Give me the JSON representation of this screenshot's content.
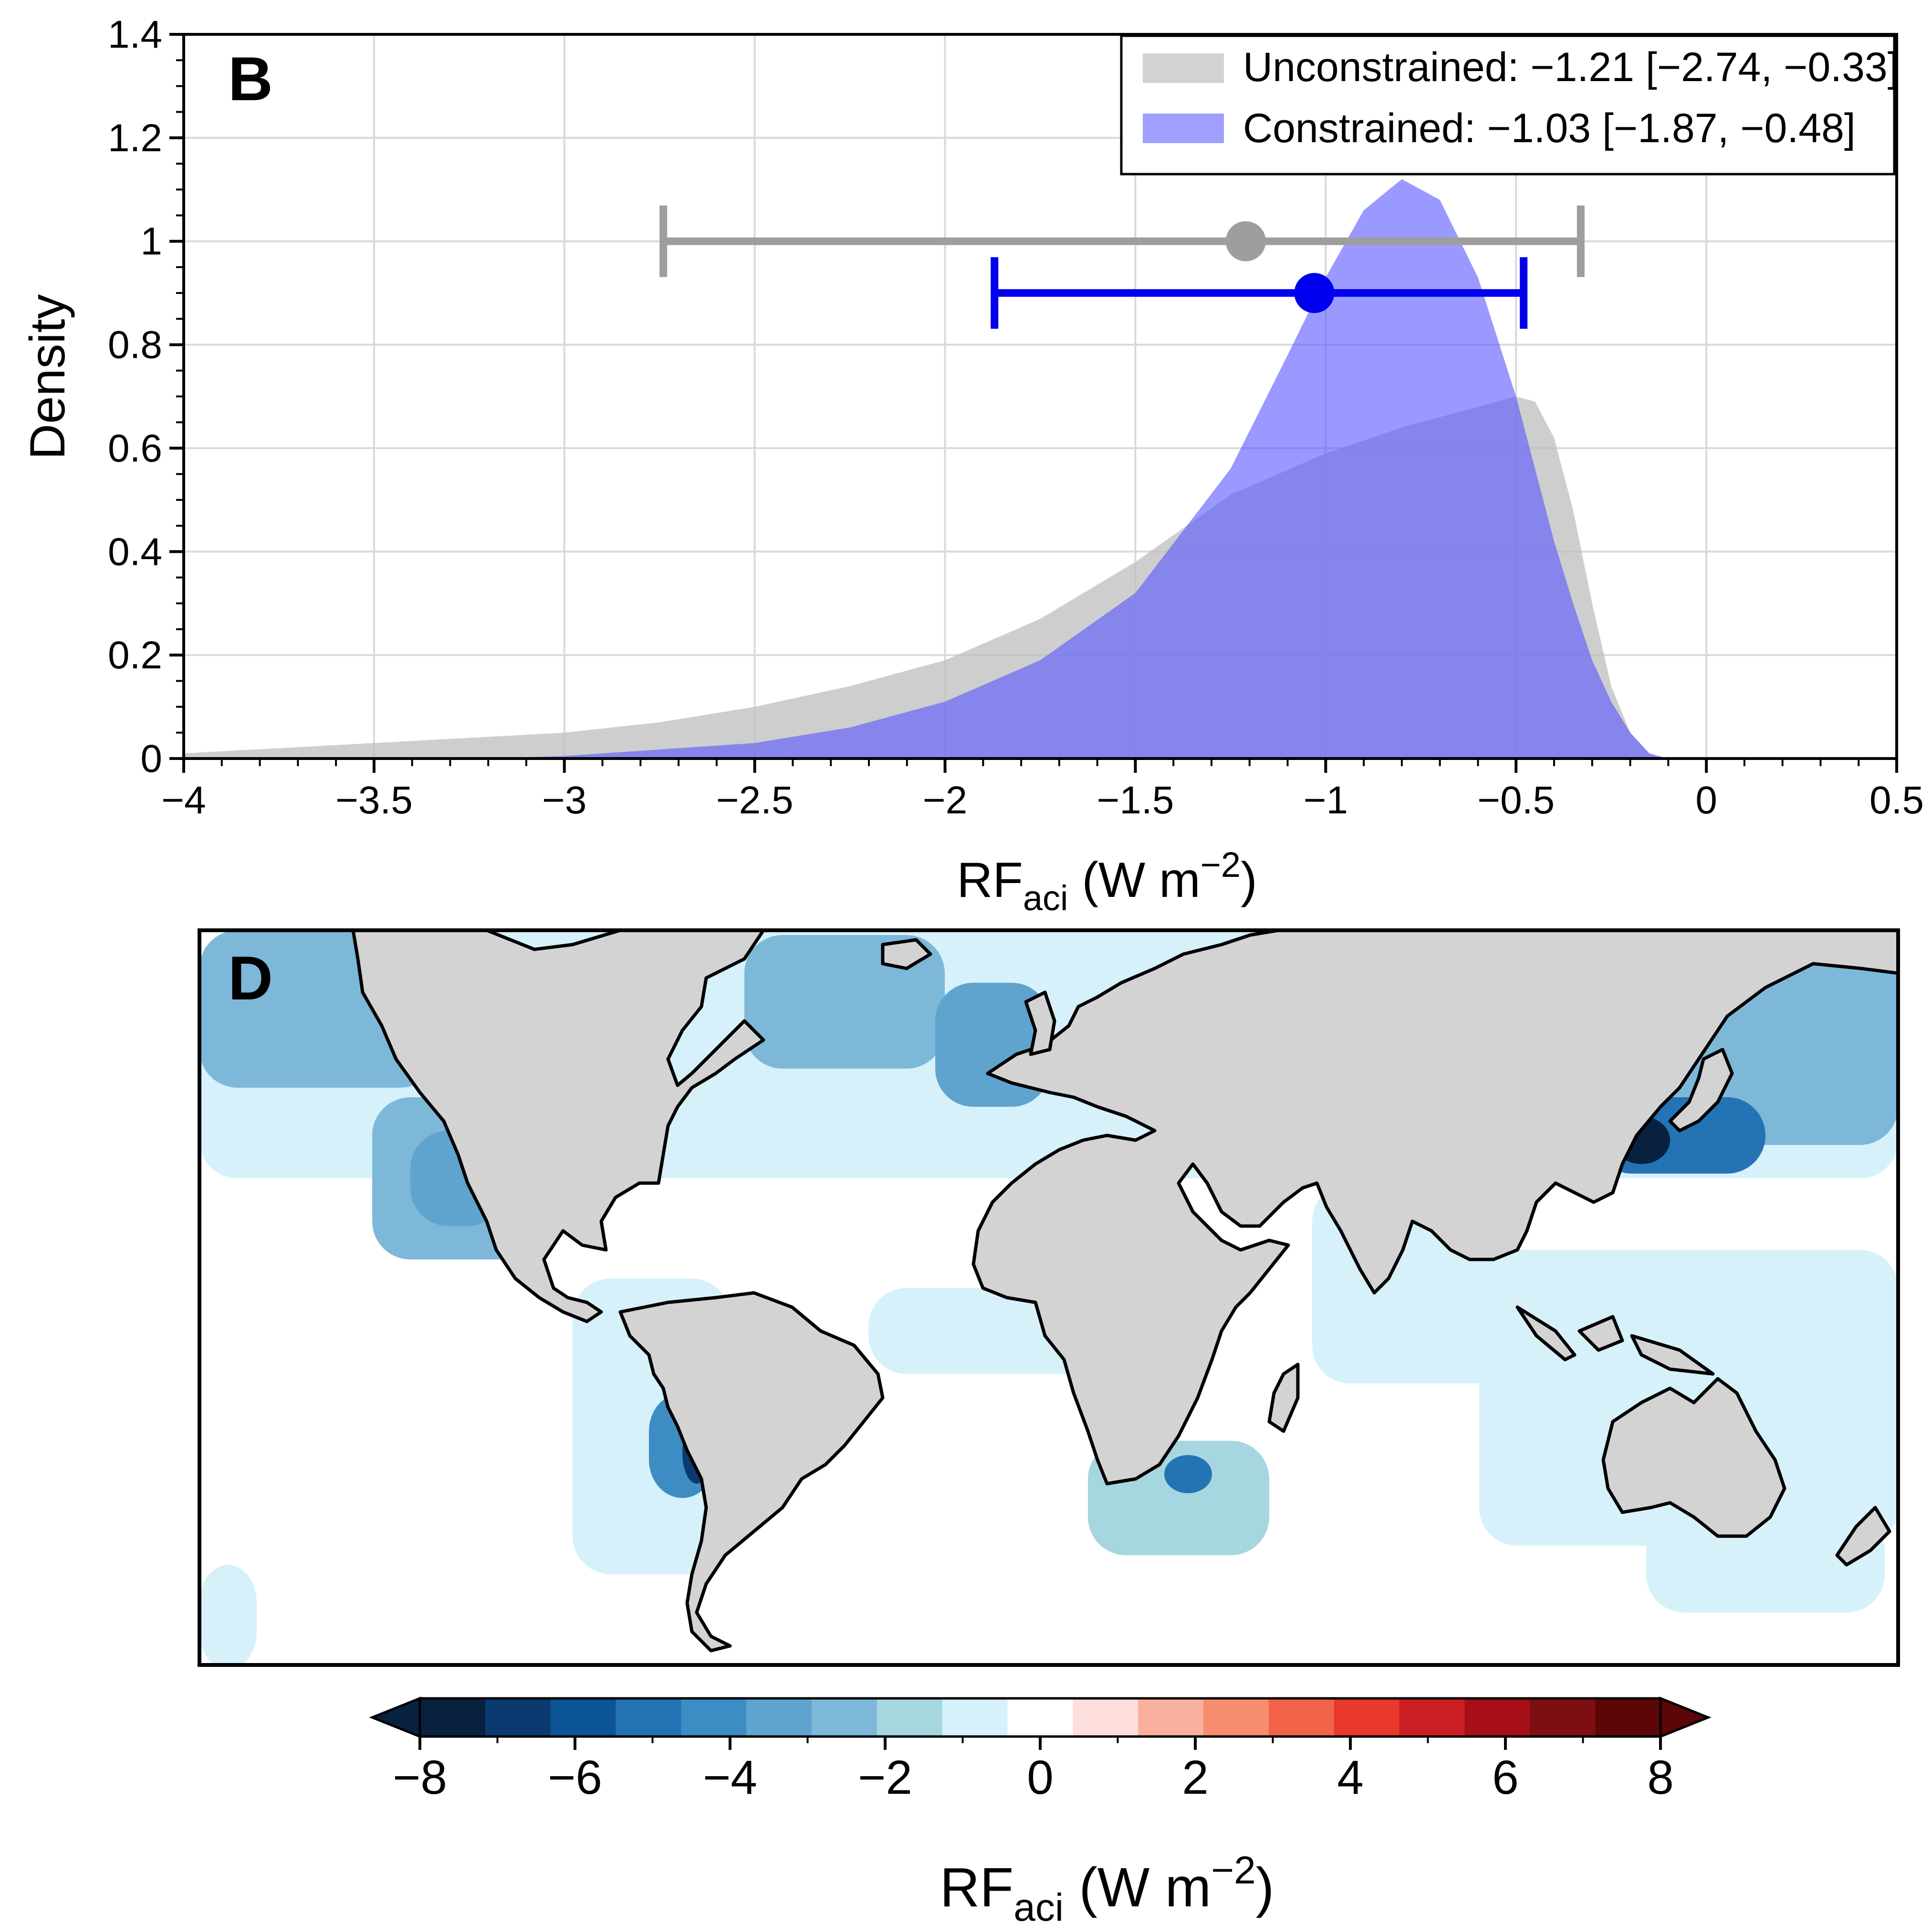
{
  "panel_b": {
    "label": "B",
    "ylabel": "Density",
    "xlabel_main": "RF",
    "xlabel_sub": "aci",
    "xlabel_unit_pre": " (W m",
    "xlabel_exp": "−2",
    "xlabel_close": ")"
  },
  "panel_d": {
    "label": "D",
    "colorbar": {
      "label_main": "RF",
      "label_sub": "aci",
      "label_unit_pre": " (W m",
      "label_exp": "−2",
      "label_close": ")",
      "ticks": [
        "−8",
        "−6",
        "−4",
        "−2",
        "0",
        "2",
        "4",
        "6",
        "8"
      ],
      "colors": [
        "#08213f",
        "#0a3a6f",
        "#0b5596",
        "#2373b5",
        "#3d8dc4",
        "#5ea4cf",
        "#7db8d8",
        "#a6d6df",
        "#d6f1fa",
        "#ffffff",
        "#fddedd",
        "#f9b09c",
        "#f78d6f",
        "#f2634a",
        "#e8392c",
        "#cc1f24",
        "#a50f15",
        "#7d0e12",
        "#5c0608"
      ],
      "range": [
        -8,
        8
      ],
      "step": 1
    }
  },
  "chart_data": [
    {
      "type": "area",
      "xlim": [
        -4,
        0.5
      ],
      "ylim": [
        0,
        1.4
      ],
      "grid": true,
      "legend_position": "top-right",
      "xticks": [
        -4,
        -3.5,
        -3,
        -2.5,
        -2,
        -1.5,
        -1,
        -0.5,
        0,
        0.5
      ],
      "xtick_labels": [
        "−4",
        "−3.5",
        "−3",
        "−2.5",
        "−2",
        "−1.5",
        "−1",
        "−0.5",
        "0",
        "0.5"
      ],
      "yticks": [
        0,
        0.2,
        0.4,
        0.6,
        0.8,
        1,
        1.2,
        1.4
      ],
      "ytick_labels": [
        "0",
        "0.2",
        "0.4",
        "0.6",
        "0.8",
        "1",
        "1.2",
        "1.4"
      ],
      "series": [
        {
          "name": "Unconstrained: −1.21 [−2.74, −0.33]",
          "color": "#bdbdbd",
          "opacity": 0.75,
          "x": [
            -4.0,
            -3.5,
            -3.0,
            -2.75,
            -2.5,
            -2.25,
            -2.0,
            -1.75,
            -1.5,
            -1.25,
            -1.0,
            -0.8,
            -0.6,
            -0.5,
            -0.45,
            -0.4,
            -0.35,
            -0.3,
            -0.25,
            -0.2,
            -0.15,
            -0.12
          ],
          "y": [
            0.01,
            0.03,
            0.05,
            0.07,
            0.1,
            0.14,
            0.19,
            0.27,
            0.38,
            0.51,
            0.59,
            0.64,
            0.68,
            0.7,
            0.69,
            0.62,
            0.48,
            0.3,
            0.14,
            0.05,
            0.01,
            0.0
          ],
          "interval": {
            "mean": -1.21,
            "low": -2.74,
            "high": -0.33,
            "y": 1.0
          }
        },
        {
          "name": "Constrained: −1.03 [−1.87, −0.48]",
          "color": "#5555ff",
          "opacity": 0.6,
          "x": [
            -3.2,
            -3.0,
            -2.5,
            -2.25,
            -2.0,
            -1.75,
            -1.5,
            -1.25,
            -1.1,
            -1.0,
            -0.9,
            -0.8,
            -0.7,
            -0.6,
            -0.5,
            -0.45,
            -0.4,
            -0.35,
            -0.3,
            -0.25,
            -0.2,
            -0.15,
            -0.1
          ],
          "y": [
            0.0,
            0.005,
            0.03,
            0.06,
            0.11,
            0.19,
            0.32,
            0.56,
            0.78,
            0.93,
            1.06,
            1.12,
            1.08,
            0.93,
            0.7,
            0.56,
            0.42,
            0.3,
            0.19,
            0.11,
            0.05,
            0.01,
            0.0
          ],
          "interval": {
            "mean": -1.03,
            "low": -1.87,
            "high": -0.48,
            "y": 0.9
          },
          "interval_color": "#0000ee"
        }
      ]
    },
    {
      "type": "heatmap",
      "units": "W m−2",
      "projection": "equirectangular",
      "land_color": "#d3d3d3",
      "scale": [
        -8,
        8
      ]
    }
  ]
}
